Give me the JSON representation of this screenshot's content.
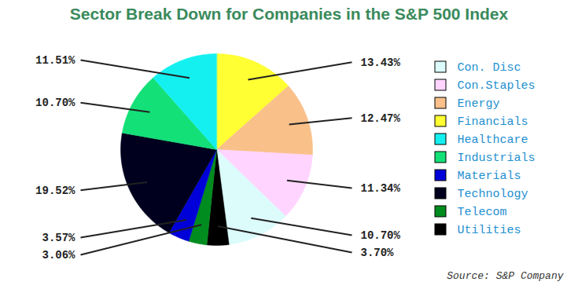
{
  "chart_data": {
    "type": "pie",
    "title": "Sector Break Down for Companies in the S&P 500 Index",
    "categories": [
      "Financials",
      "Energy",
      "Con.Staples",
      "Con. Disc",
      "Utilities",
      "Telecom",
      "Materials",
      "Technology",
      "Industrials",
      "Healthcare"
    ],
    "values": [
      13.43,
      12.47,
      11.34,
      10.7,
      3.7,
      3.06,
      3.57,
      19.52,
      10.7,
      11.51
    ],
    "value_labels": [
      "13.43%",
      "12.47%",
      "11.34%",
      "10.70%",
      "3.70%",
      "3.06%",
      "3.57%",
      "19.52%",
      "10.70%",
      "11.51%"
    ],
    "colors": [
      "#ffff33",
      "#f9c08a",
      "#ffd5ff",
      "#dcfcfc",
      "#000000",
      "#008c1e",
      "#0000d8",
      "#00001e",
      "#14e078",
      "#14f0f0"
    ],
    "data_labels": true,
    "legend": "right",
    "annotations": [
      "Source: S&P Company"
    ]
  }
}
